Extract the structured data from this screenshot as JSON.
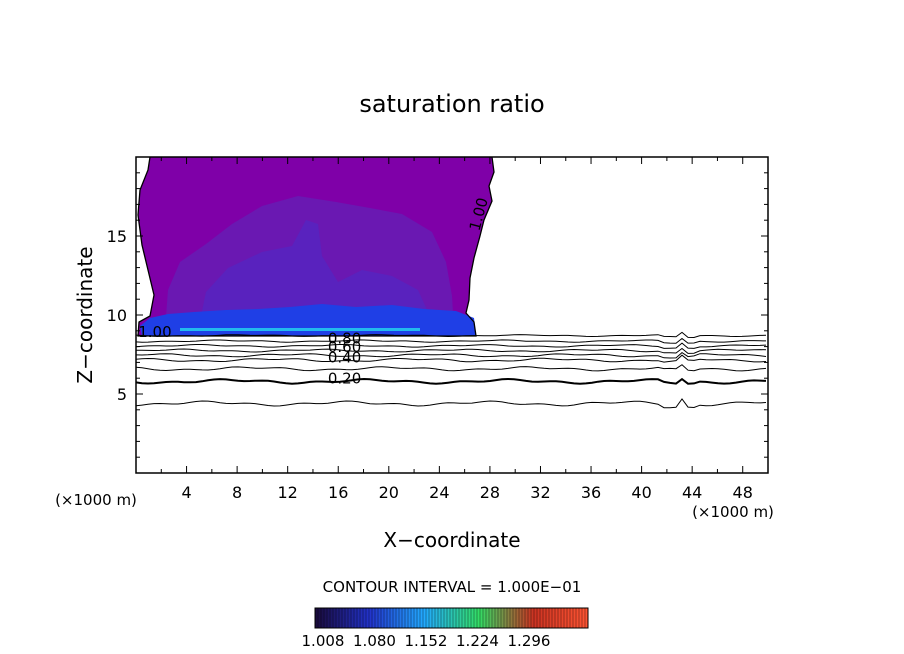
{
  "chart_data": {
    "type": "contour",
    "title": "saturation ratio",
    "xlabel": "X−coordinate",
    "ylabel": "Z−coordinate",
    "x_unit_left": "(×1000 m)",
    "x_unit_right": "(×1000 m)",
    "xlim": [
      0,
      50
    ],
    "ylim": [
      0,
      20
    ],
    "x_ticks": [
      4,
      8,
      12,
      16,
      20,
      24,
      28,
      32,
      36,
      40,
      44,
      48
    ],
    "y_ticks": [
      5,
      10,
      15
    ],
    "contour_interval_text": "CONTOUR INTERVAL = 1.000E−01",
    "colorbar": {
      "tick_labels": [
        "1.008",
        "1.080",
        "1.152",
        "1.224",
        "1.296"
      ],
      "colors": [
        "#1a0a3a",
        "#2233cc",
        "#22aaff",
        "#33dd66",
        "#cc3322",
        "#ff5533"
      ]
    },
    "fill_colors": {
      "purple": "#7f00a8",
      "purple_dark": "#6a18b2",
      "indigo": "#4a2cc8",
      "blue": "#1f3fe6",
      "cyan": "#22bbee"
    },
    "contour_labels": [
      {
        "text": "1.00",
        "x": 27.5,
        "z": 16.3,
        "rotate": -75
      },
      {
        "text": "1.00",
        "x": 1.5,
        "z": 8.6,
        "rotate": 0
      },
      {
        "text": "0.80",
        "x": 16.5,
        "z": 8.2,
        "rotate": 0
      },
      {
        "text": "0.60",
        "x": 16.5,
        "z": 7.65,
        "rotate": 0
      },
      {
        "text": "0.40",
        "x": 16.5,
        "z": 7.0,
        "rotate": 0
      },
      {
        "text": "0.20",
        "x": 16.5,
        "z": 5.65,
        "rotate": 0
      }
    ],
    "contour_levels": [
      {
        "level": 0.9,
        "z": 8.7,
        "width": 1
      },
      {
        "level": 0.8,
        "z": 8.35,
        "width": 1
      },
      {
        "level": 0.7,
        "z": 8.05,
        "width": 1
      },
      {
        "level": 0.6,
        "z": 7.75,
        "width": 1
      },
      {
        "level": 0.5,
        "z": 7.45,
        "width": 1
      },
      {
        "level": 0.4,
        "z": 7.15,
        "width": 1
      },
      {
        "level": 0.3,
        "z": 6.6,
        "width": 1
      },
      {
        "level": 0.2,
        "z": 5.8,
        "width": 2
      },
      {
        "level": 0.1,
        "z": 4.4,
        "width": 1
      }
    ]
  }
}
